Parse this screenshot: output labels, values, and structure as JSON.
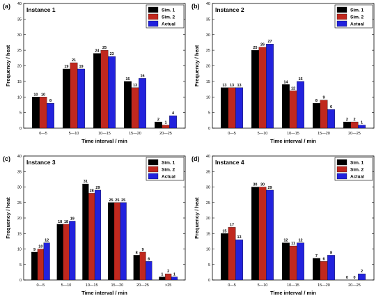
{
  "colors": {
    "sim1": "#000000",
    "sim2": "#c0281e",
    "actual": "#2222dd"
  },
  "chart_data": [
    {
      "type": "bar",
      "panel": "(a)",
      "title": "Instance 1",
      "xlabel": "Time interval / min",
      "ylabel": "Frequency / heat",
      "ylim": [
        0,
        40
      ],
      "yticks": [
        0,
        5,
        10,
        15,
        20,
        25,
        30,
        35,
        40
      ],
      "categories": [
        "0—5",
        "5—10",
        "10—15",
        "15—20",
        "20—25"
      ],
      "series": [
        {
          "name": "Sim. 1",
          "values": [
            10,
            19,
            24,
            15,
            2
          ]
        },
        {
          "name": "Sim. 2",
          "values": [
            10,
            21,
            25,
            13,
            1
          ]
        },
        {
          "name": "Actual",
          "values": [
            8,
            19,
            23,
            16,
            4
          ]
        }
      ],
      "legend": "top-right"
    },
    {
      "type": "bar",
      "panel": "(b)",
      "title": "Instance 2",
      "xlabel": "Time interval / min",
      "ylabel": "Frequency / heat",
      "ylim": [
        0,
        40
      ],
      "yticks": [
        0,
        5,
        10,
        15,
        20,
        25,
        30,
        35,
        40
      ],
      "categories": [
        "0—5",
        "5—10",
        "10—15",
        "15—20",
        "20—25"
      ],
      "series": [
        {
          "name": "Sim. 1",
          "values": [
            13,
            25,
            14,
            8,
            2
          ]
        },
        {
          "name": "Sim. 2",
          "values": [
            13,
            26,
            12,
            9,
            2
          ]
        },
        {
          "name": "Actual",
          "values": [
            13,
            27,
            15,
            6,
            1
          ]
        }
      ],
      "legend": "top-right"
    },
    {
      "type": "bar",
      "panel": "(c)",
      "title": "Instance 3",
      "xlabel": "Time interval / min",
      "ylabel": "Frequency / heat",
      "ylim": [
        0,
        40
      ],
      "yticks": [
        0,
        5,
        10,
        15,
        20,
        25,
        30,
        35,
        40
      ],
      "categories": [
        "0—5",
        "5—10",
        "10—15",
        "15—20",
        "20—25",
        ">25"
      ],
      "series": [
        {
          "name": "Sim. 1",
          "values": [
            9,
            18,
            31,
            25,
            8,
            1
          ]
        },
        {
          "name": "Sim. 2",
          "values": [
            10,
            18,
            28,
            25,
            9,
            2
          ]
        },
        {
          "name": "Actual",
          "values": [
            12,
            19,
            29,
            25,
            6,
            1
          ]
        }
      ],
      "legend": "top-right"
    },
    {
      "type": "bar",
      "panel": "(d)",
      "title": "Instance 4",
      "xlabel": "Time interval / min",
      "ylabel": "Frequency / heat",
      "ylim": [
        0,
        40
      ],
      "yticks": [
        0,
        5,
        10,
        15,
        20,
        25,
        30,
        35,
        40
      ],
      "categories": [
        "0—5",
        "5—10",
        "10—15",
        "15—20",
        "20—25"
      ],
      "series": [
        {
          "name": "Sim. 1",
          "values": [
            15,
            30,
            12,
            7,
            0
          ]
        },
        {
          "name": "Sim. 2",
          "values": [
            17,
            30,
            11,
            6,
            0
          ]
        },
        {
          "name": "Actual",
          "values": [
            13,
            29,
            12,
            8,
            2
          ]
        }
      ],
      "legend": "top-right"
    }
  ]
}
